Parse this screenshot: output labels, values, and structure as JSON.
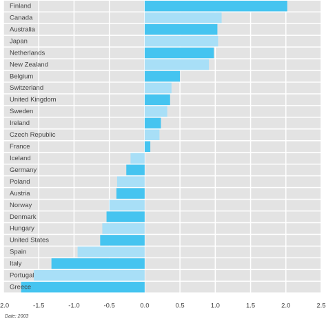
{
  "chart_data": {
    "type": "hbar",
    "note": "Date: 2003",
    "categories": [
      "Finland",
      "Canada",
      "Australia",
      "Japan",
      "Netherlands",
      "New Zealand",
      "Belgium",
      "Switzerland",
      "United Kingdom",
      "Sweden",
      "Ireland",
      "Czech Republic",
      "France",
      "Iceland",
      "Germany",
      "Poland",
      "Austria",
      "Norway",
      "Denmark",
      "Hungary",
      "United States",
      "Spain",
      "Italy",
      "Portugal",
      "Greece"
    ],
    "values": [
      2.02,
      1.09,
      1.03,
      1.04,
      0.98,
      0.91,
      0.5,
      0.38,
      0.36,
      0.32,
      0.23,
      0.21,
      0.08,
      -0.2,
      -0.26,
      -0.39,
      -0.4,
      -0.5,
      -0.54,
      -0.6,
      -0.63,
      -0.95,
      -1.32,
      -1.57,
      -1.75
    ],
    "colors": [
      "#45c4f0",
      "#a8dff7"
    ],
    "xlim": [
      -2,
      2.5
    ],
    "xticks": [
      {
        "value": -2,
        "label": "-2.0"
      },
      -1.5,
      {
        "value": -1,
        "label": "-1.0"
      },
      -0.5,
      {
        "value": 0,
        "label": "0.0"
      },
      0.5,
      {
        "value": 1,
        "label": "1.0"
      },
      1.5,
      {
        "value": 2,
        "label": "2.0"
      },
      2.5
    ],
    "grid": true
  }
}
